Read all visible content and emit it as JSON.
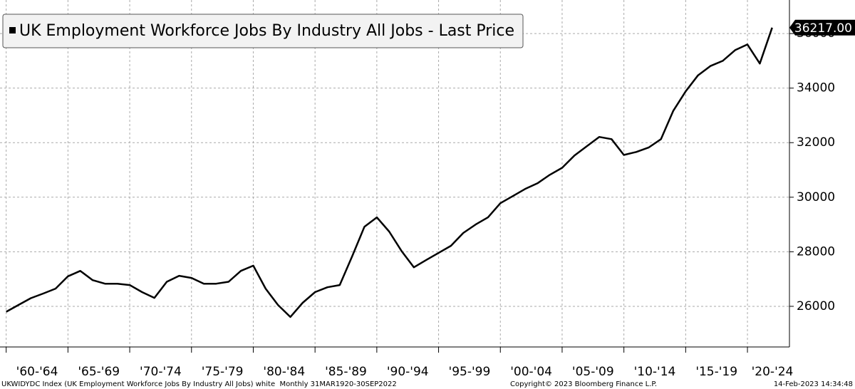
{
  "chart_data": {
    "type": "line",
    "series": [
      {
        "name": "UK Employment Workforce Jobs By Industry All Jobs - Last Price",
        "color": "#000000",
        "x": [
          1960,
          1961,
          1962,
          1963,
          1964,
          1965,
          1966,
          1967,
          1968,
          1969,
          1970,
          1971,
          1972,
          1973,
          1974,
          1975,
          1976,
          1977,
          1978,
          1979,
          1980,
          1981,
          1982,
          1983,
          1984,
          1985,
          1986,
          1987,
          1988,
          1989,
          1990,
          1991,
          1992,
          1993,
          1994,
          1995,
          1996,
          1997,
          1998,
          1999,
          2000,
          2001,
          2002,
          2003,
          2004,
          2005,
          2006,
          2007,
          2008,
          2009,
          2010,
          2011,
          2012,
          2013,
          2014,
          2015,
          2016,
          2017,
          2018,
          2019,
          2020,
          2021,
          2022
        ],
        "values": [
          25800,
          26050,
          26300,
          26470,
          26650,
          27100,
          27300,
          26960,
          26830,
          26830,
          26780,
          26520,
          26310,
          26900,
          27120,
          27040,
          26830,
          26830,
          26900,
          27300,
          27490,
          26650,
          26050,
          25610,
          26130,
          26520,
          26700,
          26780,
          27830,
          28920,
          29260,
          28740,
          28030,
          27430,
          27700,
          27960,
          28220,
          28690,
          29000,
          29260,
          29780,
          30040,
          30300,
          30510,
          30820,
          31080,
          31530,
          31870,
          32210,
          32130,
          31550,
          31660,
          31820,
          32130,
          33170,
          33880,
          34470,
          34810,
          35000,
          35390,
          35600,
          34900,
          36217
        ]
      }
    ],
    "last_value_label": "36217.00",
    "xlim": [
      1959.5,
      2023.4
    ],
    "xticks": [
      {
        "value": 1960,
        "label": "'60-'64"
      },
      {
        "value": 1965,
        "label": "'65-'69"
      },
      {
        "value": 1970,
        "label": "'70-'74"
      },
      {
        "value": 1975,
        "label": "'75-'79"
      },
      {
        "value": 1980,
        "label": "'80-'84"
      },
      {
        "value": 1985,
        "label": "'85-'89"
      },
      {
        "value": 1990,
        "label": "'90-'94"
      },
      {
        "value": 1995,
        "label": "'95-'99"
      },
      {
        "value": 2000,
        "label": "'00-'04"
      },
      {
        "value": 2005,
        "label": "'05-'09"
      },
      {
        "value": 2010,
        "label": "'10-'14"
      },
      {
        "value": 2015,
        "label": "'15-'19"
      },
      {
        "value": 2020,
        "label": "'20-'24"
      }
    ],
    "ylim": [
      24510,
      37230
    ],
    "yticks": [
      26000,
      28000,
      30000,
      32000,
      34000,
      36000
    ],
    "grid": true,
    "legend_position": "upper left",
    "footer_left": "UKWIDYDC Index (UK Employment Workforce Jobs By Industry All Jobs) white  Monthly 31MAR1920-30SEP2022",
    "footer_center": "Copyright© 2023 Bloomberg Finance L.P.",
    "footer_right": "14-Feb-2023 14:34:48"
  }
}
